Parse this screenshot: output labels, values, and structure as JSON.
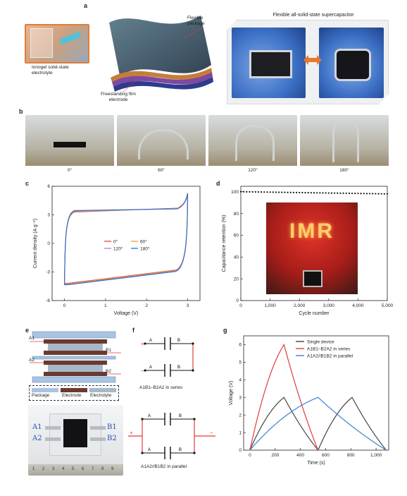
{
  "panel_a": {
    "label": "a",
    "ionogel_label": "Ionogel solid-state electrolyte",
    "package_label": "Flexible package",
    "film_label": "Freestanding film electrode",
    "supercap_title": "Flexible all-solid-state supercapacitor"
  },
  "panel_b": {
    "label": "b",
    "angles": [
      "0°",
      "60°",
      "120°",
      "180°"
    ]
  },
  "panel_c": {
    "label": "c"
  },
  "panel_d": {
    "label": "d",
    "photo_text": "IMR"
  },
  "panel_e": {
    "label": "e",
    "electrodes": [
      "A1",
      "B1",
      "A2",
      "B2"
    ],
    "legend": [
      "Package",
      "Electrode",
      "Electrolyte"
    ],
    "photo_marks": [
      "A1",
      "A2",
      "B1",
      "B2"
    ],
    "ruler_ticks": [
      "1",
      "2",
      "3",
      "4",
      "5",
      "6",
      "7",
      "8",
      "9"
    ]
  },
  "panel_f": {
    "label": "f",
    "series_caption": "A1B1–B2A2 in series",
    "parallel_caption": "A1A2//B1B2 in parallel",
    "plus": "+",
    "minus": "−"
  },
  "panel_g": {
    "label": "g"
  },
  "chart_data": [
    {
      "id": "c",
      "type": "line",
      "xlabel": "Voltage (V)",
      "ylabel": "Current density (A g⁻¹)",
      "xlim": [
        -0.3,
        3.3
      ],
      "ylim": [
        -6,
        6
      ],
      "xticks": [
        0,
        1,
        2,
        3
      ],
      "yticks": [
        -6,
        -3,
        0,
        3,
        6
      ],
      "legend_position": "center",
      "series": [
        {
          "name": "0°",
          "color": "#e8432e"
        },
        {
          "name": "60°",
          "color": "#e8a11c"
        },
        {
          "name": "120°",
          "color": "#b27bd6"
        },
        {
          "name": "180°",
          "color": "#2a6fc9"
        }
      ],
      "cv_shape": {
        "upper_start": [
          0,
          3.0
        ],
        "upper_end": [
          3.0,
          5.3
        ],
        "lower_start": [
          3.0,
          -2.8
        ],
        "lower_end": [
          0,
          -4.2
        ],
        "vertex_high": [
          3.0,
          5.3
        ],
        "vertex_low": [
          0,
          -4.2
        ]
      }
    },
    {
      "id": "d",
      "type": "scatter",
      "xlabel": "Cycle number",
      "ylabel": "Capacitance retention (%)",
      "xlim": [
        0,
        5000
      ],
      "ylim": [
        0,
        105
      ],
      "xticks": [
        "0",
        "1,000",
        "2,000",
        "3,000",
        "4,000",
        "5,000"
      ],
      "xtick_values": [
        0,
        1000,
        2000,
        3000,
        4000,
        5000
      ],
      "yticks": [
        0,
        20,
        40,
        60,
        80,
        100
      ],
      "series": [
        {
          "name": "",
          "color": "#111111",
          "x_start": 0,
          "x_end": 5000,
          "x_step": 100,
          "y_start": 100,
          "y_end": 98
        }
      ]
    },
    {
      "id": "g",
      "type": "line",
      "xlabel": "Time (s)",
      "ylabel": "Voltage (V)",
      "xlim": [
        -50,
        1100
      ],
      "ylim": [
        0,
        6.5
      ],
      "xticks": [
        "0",
        "200",
        "400",
        "600",
        "800",
        "1,000"
      ],
      "xtick_values": [
        0,
        200,
        400,
        600,
        800,
        1000
      ],
      "yticks": [
        0,
        1,
        2,
        3,
        4,
        5,
        6
      ],
      "legend_position": "top-right",
      "series": [
        {
          "name": "Single device",
          "color": "#444444",
          "x": [
            0,
            270,
            540,
            810,
            1080
          ],
          "y": [
            0,
            3,
            0,
            3,
            0
          ]
        },
        {
          "name": "A1B1–B2A2 in series",
          "color": "#e23b3b",
          "x": [
            0,
            270,
            540
          ],
          "y": [
            0,
            6,
            0
          ]
        },
        {
          "name": "A1A2//B1B2 in parallel",
          "color": "#3b82d6",
          "x": [
            0,
            540,
            1080
          ],
          "y": [
            0,
            3,
            0
          ]
        }
      ]
    }
  ]
}
